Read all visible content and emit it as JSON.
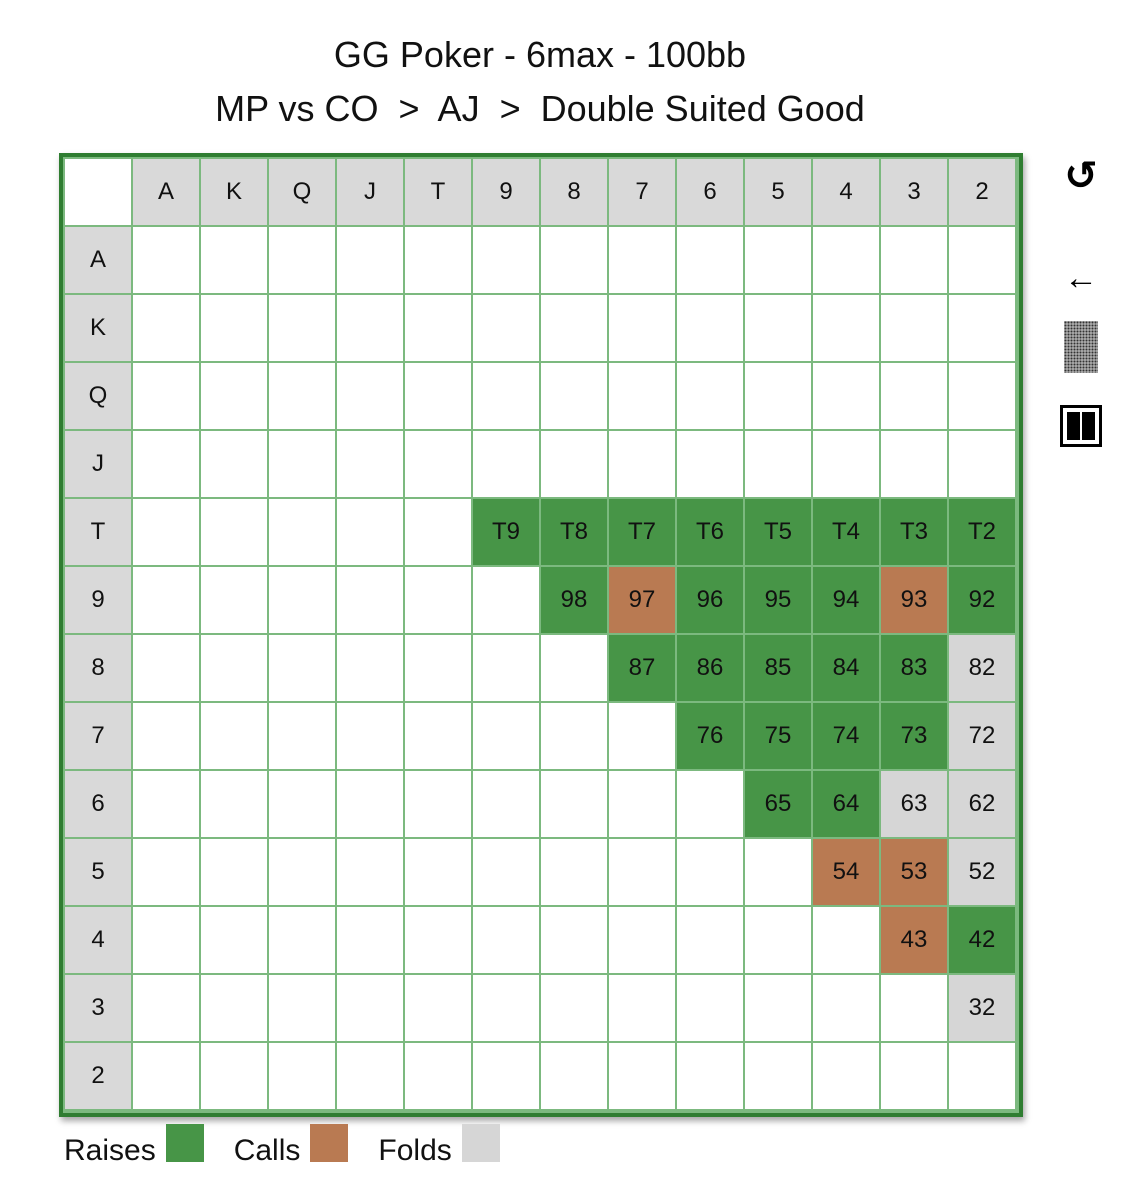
{
  "title": {
    "line1": "GG Poker - 6max - 100bb",
    "line2": "MP vs CO  >  AJ  >  Double Suited Good"
  },
  "colors": {
    "raise": "#479547",
    "call": "#b97a52",
    "fold": "#d6d6d6",
    "header": "#d9d9d9",
    "grid_border": "#2f7d31",
    "grid_lines": "#7cb97f"
  },
  "columns": [
    "A",
    "K",
    "Q",
    "J",
    "T",
    "9",
    "8",
    "7",
    "6",
    "5",
    "4",
    "3",
    "2"
  ],
  "rows": [
    {
      "label": "A",
      "cells": [
        "",
        "",
        "",
        "",
        "",
        "",
        "",
        "",
        "",
        "",
        "",
        "",
        ""
      ],
      "actions": [
        "",
        "",
        "",
        "",
        "",
        "",
        "",
        "",
        "",
        "",
        "",
        "",
        ""
      ]
    },
    {
      "label": "K",
      "cells": [
        "",
        "",
        "",
        "",
        "",
        "",
        "",
        "",
        "",
        "",
        "",
        "",
        ""
      ],
      "actions": [
        "",
        "",
        "",
        "",
        "",
        "",
        "",
        "",
        "",
        "",
        "",
        "",
        ""
      ]
    },
    {
      "label": "Q",
      "cells": [
        "",
        "",
        "",
        "",
        "",
        "",
        "",
        "",
        "",
        "",
        "",
        "",
        ""
      ],
      "actions": [
        "",
        "",
        "",
        "",
        "",
        "",
        "",
        "",
        "",
        "",
        "",
        "",
        ""
      ]
    },
    {
      "label": "J",
      "cells": [
        "",
        "",
        "",
        "",
        "",
        "",
        "",
        "",
        "",
        "",
        "",
        "",
        ""
      ],
      "actions": [
        "",
        "",
        "",
        "",
        "",
        "",
        "",
        "",
        "",
        "",
        "",
        "",
        ""
      ]
    },
    {
      "label": "T",
      "cells": [
        "",
        "",
        "",
        "",
        "",
        "T9",
        "T8",
        "T7",
        "T6",
        "T5",
        "T4",
        "T3",
        "T2"
      ],
      "actions": [
        "",
        "",
        "",
        "",
        "",
        "raise",
        "raise",
        "raise",
        "raise",
        "raise",
        "raise",
        "raise",
        "raise"
      ]
    },
    {
      "label": "9",
      "cells": [
        "",
        "",
        "",
        "",
        "",
        "",
        "98",
        "97",
        "96",
        "95",
        "94",
        "93",
        "92"
      ],
      "actions": [
        "",
        "",
        "",
        "",
        "",
        "",
        "raise",
        "call",
        "raise",
        "raise",
        "raise",
        "call",
        "raise"
      ]
    },
    {
      "label": "8",
      "cells": [
        "",
        "",
        "",
        "",
        "",
        "",
        "",
        "87",
        "86",
        "85",
        "84",
        "83",
        "82"
      ],
      "actions": [
        "",
        "",
        "",
        "",
        "",
        "",
        "",
        "raise",
        "raise",
        "raise",
        "raise",
        "raise",
        "fold"
      ]
    },
    {
      "label": "7",
      "cells": [
        "",
        "",
        "",
        "",
        "",
        "",
        "",
        "",
        "76",
        "75",
        "74",
        "73",
        "72"
      ],
      "actions": [
        "",
        "",
        "",
        "",
        "",
        "",
        "",
        "",
        "raise",
        "raise",
        "raise",
        "raise",
        "fold"
      ]
    },
    {
      "label": "6",
      "cells": [
        "",
        "",
        "",
        "",
        "",
        "",
        "",
        "",
        "",
        "65",
        "64",
        "63",
        "62"
      ],
      "actions": [
        "",
        "",
        "",
        "",
        "",
        "",
        "",
        "",
        "",
        "raise",
        "raise",
        "fold",
        "fold"
      ]
    },
    {
      "label": "5",
      "cells": [
        "",
        "",
        "",
        "",
        "",
        "",
        "",
        "",
        "",
        "",
        "54",
        "53",
        "52"
      ],
      "actions": [
        "",
        "",
        "",
        "",
        "",
        "",
        "",
        "",
        "",
        "",
        "call",
        "call",
        "fold"
      ]
    },
    {
      "label": "4",
      "cells": [
        "",
        "",
        "",
        "",
        "",
        "",
        "",
        "",
        "",
        "",
        "",
        "43",
        "42"
      ],
      "actions": [
        "",
        "",
        "",
        "",
        "",
        "",
        "",
        "",
        "",
        "",
        "",
        "call",
        "raise"
      ]
    },
    {
      "label": "3",
      "cells": [
        "",
        "",
        "",
        "",
        "",
        "",
        "",
        "",
        "",
        "",
        "",
        "",
        "32"
      ],
      "actions": [
        "",
        "",
        "",
        "",
        "",
        "",
        "",
        "",
        "",
        "",
        "",
        "",
        "fold"
      ]
    },
    {
      "label": "2",
      "cells": [
        "",
        "",
        "",
        "",
        "",
        "",
        "",
        "",
        "",
        "",
        "",
        "",
        ""
      ],
      "actions": [
        "",
        "",
        "",
        "",
        "",
        "",
        "",
        "",
        "",
        "",
        "",
        "",
        ""
      ]
    }
  ],
  "legend": [
    {
      "label": "Raises",
      "color": "#479547"
    },
    {
      "label": "Calls",
      "color": "#b97a52"
    },
    {
      "label": "Folds",
      "color": "#d6d6d6"
    }
  ],
  "controls": {
    "undo_glyph": "↺",
    "back_glyph": "←",
    "undo_icon": "undo-icon",
    "back_icon": "back-arrow-icon",
    "pattern_icon": "pattern-icon",
    "pause_icon": "pause-icon"
  }
}
